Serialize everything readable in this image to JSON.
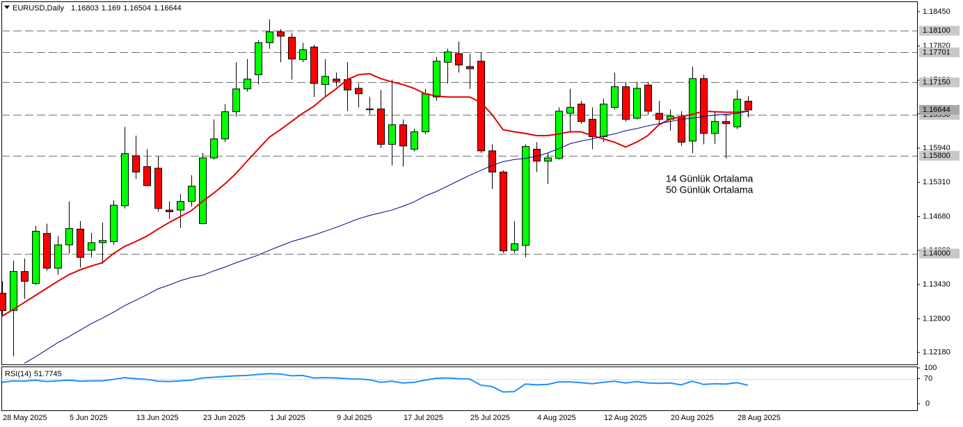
{
  "chart_data": [
    {
      "type": "candlestick",
      "title": "EURUSD,Daily",
      "categories": [
        "28 May 2025",
        null,
        null,
        null,
        null,
        null,
        "5 Jun 2025",
        null,
        null,
        null,
        null,
        null,
        "13 Jun 2025",
        null,
        null,
        null,
        null,
        null,
        "23 Jun 2025",
        null,
        null,
        null,
        null,
        null,
        "1 Jul 2025",
        null,
        null,
        null,
        null,
        null,
        "9 Jul 2025",
        null,
        null,
        null,
        null,
        null,
        "17 Jul 2025",
        null,
        null,
        null,
        null,
        null,
        "25 Jul 2025",
        null,
        null,
        null,
        null,
        null,
        "4 Aug 2025",
        null,
        null,
        null,
        null,
        null,
        "12 Aug 2025",
        null,
        null,
        null,
        null,
        null,
        "20 Aug 2025",
        null,
        null,
        null,
        null,
        null,
        "28 Aug 2025",
        null
      ],
      "open": [
        1.1327,
        1.1295,
        1.1367,
        1.1345,
        1.1437,
        1.1373,
        1.1416,
        1.1445,
        1.1406,
        1.142,
        1.1422,
        1.1488,
        1.158,
        1.156,
        1.1557,
        1.148,
        1.148,
        1.1496,
        1.1455,
        1.1576,
        1.1611,
        1.1661,
        1.1703,
        1.1729,
        1.1788,
        1.1808,
        1.1798,
        1.1757,
        1.178,
        1.1711,
        1.1721,
        1.172,
        1.1704,
        1.1666,
        1.1666,
        1.1601,
        1.1637,
        1.1592,
        1.1624,
        1.1688,
        1.1752,
        1.1768,
        1.1744,
        1.1754,
        1.1589,
        1.155,
        1.1406,
        1.1415,
        1.1592,
        1.157,
        1.1575,
        1.1658,
        1.1675,
        1.1647,
        1.1615,
        1.1669,
        1.1707,
        1.1649,
        1.171,
        1.1658,
        1.1647,
        1.1652,
        1.1607,
        1.1722,
        1.1621,
        1.1643,
        1.1633,
        1.16803
      ],
      "high": [
        1.1349,
        1.1387,
        1.1391,
        1.1451,
        1.1455,
        1.1432,
        1.1496,
        1.146,
        1.1438,
        1.1457,
        1.1498,
        1.1633,
        1.1617,
        1.1592,
        1.1579,
        1.1496,
        1.1509,
        1.1544,
        1.1585,
        1.1647,
        1.1675,
        1.1752,
        1.1758,
        1.1793,
        1.1831,
        1.1813,
        1.1806,
        1.1788,
        1.1784,
        1.1758,
        1.1733,
        1.1752,
        1.1713,
        1.1688,
        1.1701,
        1.172,
        1.1647,
        1.163,
        1.1703,
        1.1762,
        1.1777,
        1.179,
        1.1767,
        1.177,
        1.1601,
        1.1553,
        1.146,
        1.1601,
        1.1605,
        1.1585,
        1.1669,
        1.1703,
        1.1681,
        1.1669,
        1.1685,
        1.1733,
        1.1716,
        1.1716,
        1.1716,
        1.1681,
        1.1665,
        1.1662,
        1.1744,
        1.1729,
        1.1662,
        1.1656,
        1.1701,
        1.169
      ],
      "low": [
        1.1285,
        1.1211,
        1.1317,
        1.1342,
        1.1368,
        1.1361,
        1.14,
        1.1374,
        1.1393,
        1.1381,
        1.1416,
        1.1483,
        1.1537,
        1.1524,
        1.1477,
        1.1464,
        1.1447,
        1.1486,
        1.1454,
        1.1573,
        1.1605,
        1.1652,
        1.1698,
        1.1711,
        1.1777,
        1.1752,
        1.172,
        1.1752,
        1.1688,
        1.1688,
        1.1707,
        1.1662,
        1.1669,
        1.1656,
        1.1594,
        1.1562,
        1.156,
        1.1588,
        1.162,
        1.1681,
        1.1713,
        1.1733,
        1.1703,
        1.1585,
        1.1519,
        1.1401,
        1.1401,
        1.1393,
        1.155,
        1.1528,
        1.1573,
        1.1624,
        1.1639,
        1.1592,
        1.1605,
        1.1665,
        1.1643,
        1.1647,
        1.1656,
        1.1639,
        1.1626,
        1.1598,
        1.1585,
        1.1601,
        1.1602,
        1.1575,
        1.1629,
        1.16504
      ],
      "close": [
        1.1295,
        1.1367,
        1.1349,
        1.1441,
        1.1373,
        1.1416,
        1.1446,
        1.1393,
        1.142,
        1.1424,
        1.1489,
        1.1584,
        1.155,
        1.1525,
        1.1483,
        1.1477,
        1.1496,
        1.1524,
        1.1576,
        1.1611,
        1.1661,
        1.1703,
        1.1721,
        1.1788,
        1.1808,
        1.18,
        1.1758,
        1.1775,
        1.1713,
        1.1726,
        1.1717,
        1.1701,
        1.1694,
        1.1665,
        1.1601,
        1.1637,
        1.1598,
        1.1624,
        1.1694,
        1.1754,
        1.1771,
        1.1747,
        1.174,
        1.1589,
        1.155,
        1.1405,
        1.1418,
        1.1597,
        1.157,
        1.1576,
        1.1662,
        1.1669,
        1.1643,
        1.1615,
        1.1675,
        1.1707,
        1.1647,
        1.1704,
        1.1662,
        1.1647,
        1.1653,
        1.1605,
        1.1722,
        1.1621,
        1.1643,
        1.1639,
        1.1684,
        1.16644
      ],
      "up_color": "#00ff00",
      "down_color": "#ff0000",
      "lines": [
        {
          "color": "#e00000",
          "values": [
            1.1285,
            1.1297,
            1.131,
            1.1323,
            1.1336,
            1.1349,
            1.1361,
            1.137,
            1.1377,
            1.1383,
            1.14,
            1.1413,
            1.1422,
            1.1432,
            1.1445,
            1.1457,
            1.1468,
            1.1479,
            1.1496,
            1.1511,
            1.1528,
            1.1547,
            1.157,
            1.1592,
            1.1614,
            1.1628,
            1.1643,
            1.1658,
            1.1671,
            1.1688,
            1.1703,
            1.172,
            1.1729,
            1.1731,
            1.1722,
            1.1716,
            1.1711,
            1.1704,
            1.1694,
            1.169,
            1.1688,
            1.1688,
            1.1688,
            1.1678,
            1.1656,
            1.1628,
            1.1624,
            1.1621,
            1.1617,
            1.1617,
            1.162,
            1.1624,
            1.1624,
            1.1617,
            1.1611,
            1.1605,
            1.1596,
            1.1605,
            1.1617,
            1.1637,
            1.1647,
            1.1652,
            1.1656,
            1.1662,
            1.1661,
            1.166,
            1.166,
            1.1662
          ]
        },
        {
          "color": "#00008b",
          "values": [
            null,
            null,
            1.1198,
            1.121,
            1.1223,
            1.1236,
            1.1247,
            1.1259,
            1.1271,
            1.1281,
            1.1292,
            1.1304,
            1.1314,
            1.1324,
            1.1335,
            1.1342,
            1.135,
            1.1356,
            1.136,
            1.1368,
            1.1375,
            1.1383,
            1.139,
            1.1397,
            1.1406,
            1.1414,
            1.1422,
            1.1428,
            1.1434,
            1.1441,
            1.1448,
            1.1456,
            1.1464,
            1.147,
            1.1475,
            1.148,
            1.1487,
            1.1495,
            1.1506,
            1.1514,
            1.1524,
            1.1534,
            1.1544,
            1.1553,
            1.1562,
            1.1569,
            1.1573,
            1.1575,
            1.1579,
            1.1585,
            1.1593,
            1.1602,
            1.1607,
            1.1611,
            1.1616,
            1.162,
            1.1626,
            1.163,
            1.1635,
            1.1639,
            1.1643,
            1.1647,
            1.1649,
            1.1652,
            1.1655,
            1.1656,
            1.1658,
            1.1662
          ]
        }
      ],
      "annotations": [
        {
          "text": "14 Günlük Ortalama",
          "color": "#f05050"
        },
        {
          "text": "50 Günlük Ortalama",
          "color": "#30a8e8"
        }
      ],
      "levels": [
        {
          "value": 1.181,
          "label": "1.18100"
        },
        {
          "value": 1.17701,
          "label": "1.17701"
        },
        {
          "value": 1.1715,
          "label": "1.17150"
        },
        {
          "value": 1.1655,
          "label": "1.16550"
        },
        {
          "value": 1.158,
          "label": "1.15800"
        },
        {
          "value": 1.14,
          "label": "1.14000"
        }
      ],
      "ylim": [
        1.1196,
        1.1864
      ],
      "yticks": [
        {
          "value": 1.1845,
          "label": "1.18450"
        },
        {
          "value": 1.1782,
          "label": "1.17820"
        },
        {
          "value": 1.1719,
          "label": "1.17190"
        },
        {
          "value": 1.1657,
          "label": "1.16570"
        },
        {
          "value": 1.1594,
          "label": "1.15940"
        },
        {
          "value": 1.1531,
          "label": "1.15310"
        },
        {
          "value": 1.1468,
          "label": "1.14680"
        },
        {
          "value": 1.1406,
          "label": "1.14060"
        },
        {
          "value": 1.1343,
          "label": "1.13430"
        },
        {
          "value": 1.128,
          "label": "1.12800"
        },
        {
          "value": 1.1218,
          "label": "1.12180"
        }
      ]
    },
    {
      "type": "line",
      "title": "RSI(14)",
      "color": "#1e90ff",
      "values": [
        60,
        64,
        63,
        66,
        62,
        64,
        66,
        63,
        64,
        64,
        68,
        73,
        70,
        68,
        63,
        62,
        64,
        66,
        72,
        74,
        76,
        78,
        79,
        82,
        84,
        83,
        78,
        79,
        72,
        73,
        72,
        70,
        69,
        67,
        60,
        63,
        58,
        60,
        66,
        71,
        72,
        70,
        69,
        52,
        48,
        33,
        34,
        55,
        53,
        54,
        61,
        61,
        59,
        56,
        60,
        63,
        58,
        62,
        58,
        57,
        58,
        53,
        63,
        54,
        56,
        55,
        59,
        51.7745
      ],
      "level": 70,
      "ylim": [
        -18,
        102
      ],
      "yticks": [
        100,
        70,
        0
      ]
    }
  ]
}
